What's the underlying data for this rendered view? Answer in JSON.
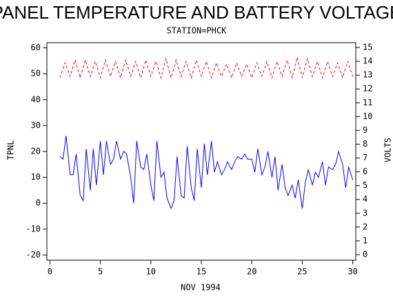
{
  "chart_data": {
    "type": "line",
    "title": "PANEL TEMPERATURE AND BATTERY VOLTAGE",
    "subtitle": "STATION=PHCK",
    "x_label": "NOV 1994",
    "y_label": "TPNL",
    "y2_label": "VOLTS",
    "xlim": [
      -0.3,
      30.3
    ],
    "xticks": [
      0,
      5,
      10,
      15,
      20,
      25,
      30
    ],
    "ylim": [
      -22,
      62
    ],
    "yticks": [
      -20,
      -10,
      0,
      10,
      20,
      30,
      40,
      50,
      60
    ],
    "y2lim": [
      -0.4,
      15.35
    ],
    "y2ticks": [
      0,
      1,
      2,
      3,
      4,
      5,
      6,
      7,
      8,
      9,
      10,
      11,
      12,
      13,
      14,
      15
    ],
    "series": [
      {
        "name": "TPNL",
        "color": "#0000ff",
        "dashed": false,
        "x": [
          1.0,
          1.3,
          1.6,
          2.0,
          2.3,
          2.6,
          3.0,
          3.3,
          3.6,
          4.0,
          4.3,
          4.6,
          5.0,
          5.3,
          5.6,
          6.0,
          6.3,
          6.6,
          7.0,
          7.3,
          7.6,
          8.0,
          8.3,
          8.6,
          9.0,
          9.3,
          9.6,
          10.0,
          10.3,
          10.6,
          11.0,
          11.3,
          11.6,
          12.0,
          12.3,
          12.6,
          13.0,
          13.3,
          13.6,
          14.0,
          14.3,
          14.6,
          15.0,
          15.3,
          15.6,
          16.0,
          16.3,
          16.6,
          17.0,
          17.3,
          17.6,
          18.0,
          18.3,
          18.6,
          19.0,
          19.3,
          19.6,
          20.0,
          20.3,
          20.6,
          21.0,
          21.3,
          21.6,
          22.0,
          22.3,
          22.6,
          23.0,
          23.3,
          23.6,
          24.0,
          24.3,
          24.6,
          25.0,
          25.3,
          25.6,
          26.0,
          26.3,
          26.6,
          27.0,
          27.3,
          27.6,
          28.0,
          28.3,
          28.6,
          29.0,
          29.3,
          29.6,
          30.0
        ],
        "values": [
          18,
          17,
          26,
          11,
          11,
          19,
          3,
          1,
          21,
          5,
          21,
          7,
          24,
          11,
          24,
          15,
          17,
          24,
          17,
          20,
          19,
          10,
          0,
          24,
          14,
          13,
          19,
          7,
          1,
          24,
          10,
          12,
          2,
          -2,
          1,
          18,
          3,
          2,
          22,
          6,
          1,
          21,
          6,
          23,
          11,
          24,
          12,
          16,
          11,
          13,
          16,
          13,
          16,
          18,
          17,
          19,
          17,
          17,
          12,
          21,
          11,
          14,
          20,
          10,
          18,
          5,
          15,
          6,
          3,
          7,
          2,
          9,
          -2,
          8,
          13,
          7,
          12,
          10,
          16,
          7,
          14,
          13,
          15,
          20,
          15,
          6,
          14,
          9
        ]
      },
      {
        "name": "VOLTS",
        "color": "#ff0000",
        "dashed": true,
        "axis": "y2",
        "x": [
          1.0,
          1.5,
          2.0,
          2.5,
          3.0,
          3.5,
          4.0,
          4.5,
          5.0,
          5.5,
          6.0,
          6.5,
          7.0,
          7.5,
          8.0,
          8.5,
          9.0,
          9.5,
          10.0,
          10.5,
          11.0,
          11.5,
          12.0,
          12.5,
          13.0,
          13.5,
          14.0,
          14.5,
          15.0,
          15.5,
          16.0,
          16.5,
          17.0,
          17.5,
          18.0,
          18.5,
          19.0,
          19.5,
          20.0,
          20.5,
          21.0,
          21.5,
          22.0,
          22.5,
          23.0,
          23.5,
          24.0,
          24.5,
          25.0,
          25.5,
          26.0,
          26.5,
          27.0,
          27.5,
          28.0,
          28.5,
          29.0,
          29.5,
          30.0
        ],
        "values": [
          12.8,
          13.9,
          12.9,
          14.1,
          12.8,
          14.1,
          12.9,
          14.0,
          12.8,
          14.1,
          12.9,
          14.0,
          12.8,
          14.1,
          12.9,
          14.0,
          12.8,
          14.1,
          12.9,
          14.0,
          12.8,
          14.2,
          12.8,
          14.1,
          12.9,
          14.0,
          12.8,
          14.1,
          12.9,
          14.0,
          12.8,
          13.9,
          12.9,
          13.8,
          12.8,
          13.9,
          12.9,
          13.8,
          12.8,
          13.9,
          12.9,
          14.0,
          12.8,
          14.0,
          12.9,
          14.1,
          12.8,
          14.3,
          12.8,
          14.2,
          12.9,
          14.0,
          12.8,
          14.0,
          12.9,
          13.9,
          12.8,
          14.0,
          12.9
        ]
      }
    ]
  }
}
